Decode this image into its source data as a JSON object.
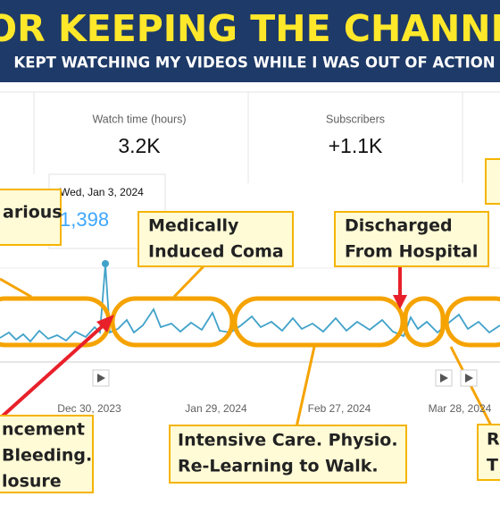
{
  "banner": {
    "title": "FOR KEEPING THE CHANNEL",
    "subtitle": "KEPT WATCHING MY VIDEOS WHILE I WAS OUT OF ACTION"
  },
  "metrics": [
    {
      "label": "Watch time (hours)",
      "value": "3.2K"
    },
    {
      "label": "Subscribers",
      "value": "+1.1K"
    }
  ],
  "tooltip": {
    "date": "Wed, Jan 3, 2024",
    "value": "1,398"
  },
  "x_labels": [
    "Dec 30, 2023",
    "Jan 29, 2024",
    "Feb 27, 2024",
    "Mar 28, 2024"
  ],
  "annotations": {
    "various": "arious",
    "coma": [
      "Medically",
      "Induced Coma"
    ],
    "discharged": [
      "Discharged",
      "From Hospital"
    ],
    "bleeding": [
      "ncement",
      "Bleeding.",
      "losure"
    ],
    "intensive": [
      "Intensive Care. Physio.",
      "Re-Learning to Walk."
    ],
    "right": [
      "R",
      "T"
    ]
  }
}
